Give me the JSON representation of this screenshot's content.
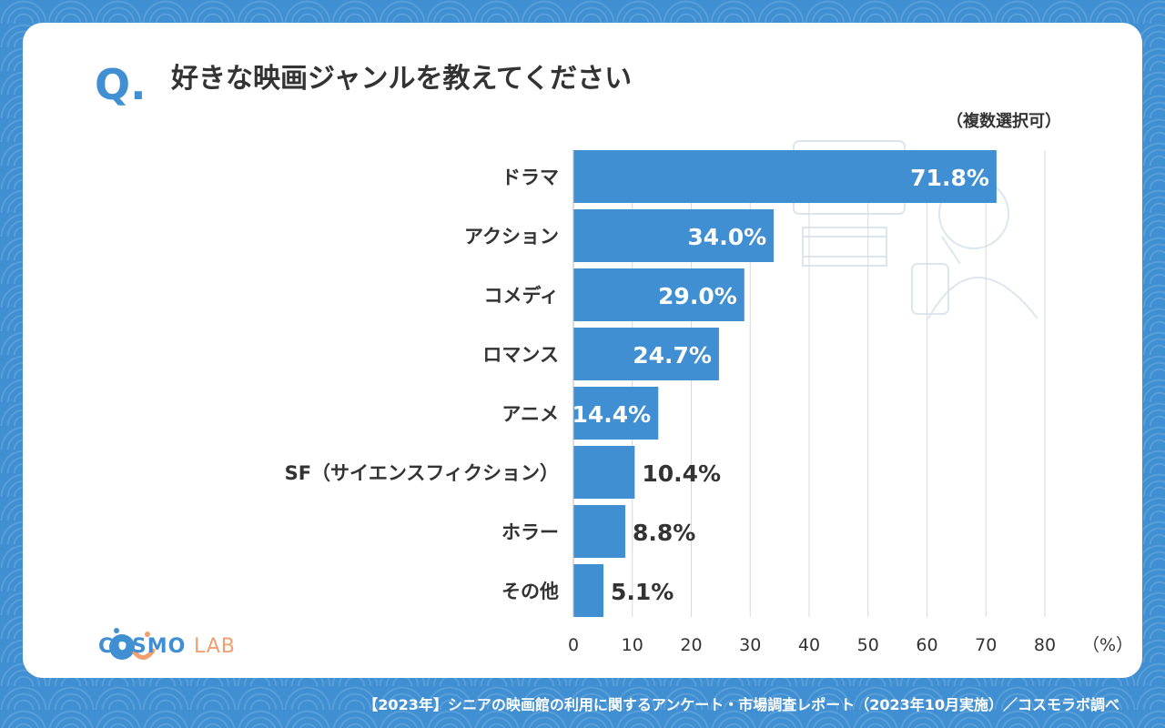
{
  "question_mark": "Q.",
  "title": "好きな映画ジャンルを教えてください",
  "note": "（複数選択可）",
  "logo": {
    "main": "COSMO",
    "sub": "LAB"
  },
  "footer": "【2023年】シニアの映画館の利用に関するアンケート・市場調査レポート（2023年10月実施）／コスモラボ調べ",
  "colors": {
    "bar": "#3f8fd2",
    "background": "#3f8fd2",
    "text": "#333333",
    "grid": "#d9d9d9"
  },
  "chart_data": {
    "type": "bar",
    "orientation": "horizontal",
    "categories": [
      "ドラマ",
      "アクション",
      "コメディ",
      "ロマンス",
      "アニメ",
      "SF（サイエンスフィクション）",
      "ホラー",
      "その他"
    ],
    "values": [
      71.8,
      34.0,
      29.0,
      24.7,
      14.4,
      10.4,
      8.8,
      5.1
    ],
    "value_labels": [
      "71.8%",
      "34.0%",
      "29.0%",
      "24.7%",
      "14.4%",
      "10.4%",
      "8.8%",
      "5.1%"
    ],
    "x_ticks": [
      "0",
      "10",
      "20",
      "30",
      "40",
      "50",
      "60",
      "70",
      "80"
    ],
    "x_unit": "（%）",
    "xlim": [
      0,
      80
    ],
    "grid": true
  }
}
